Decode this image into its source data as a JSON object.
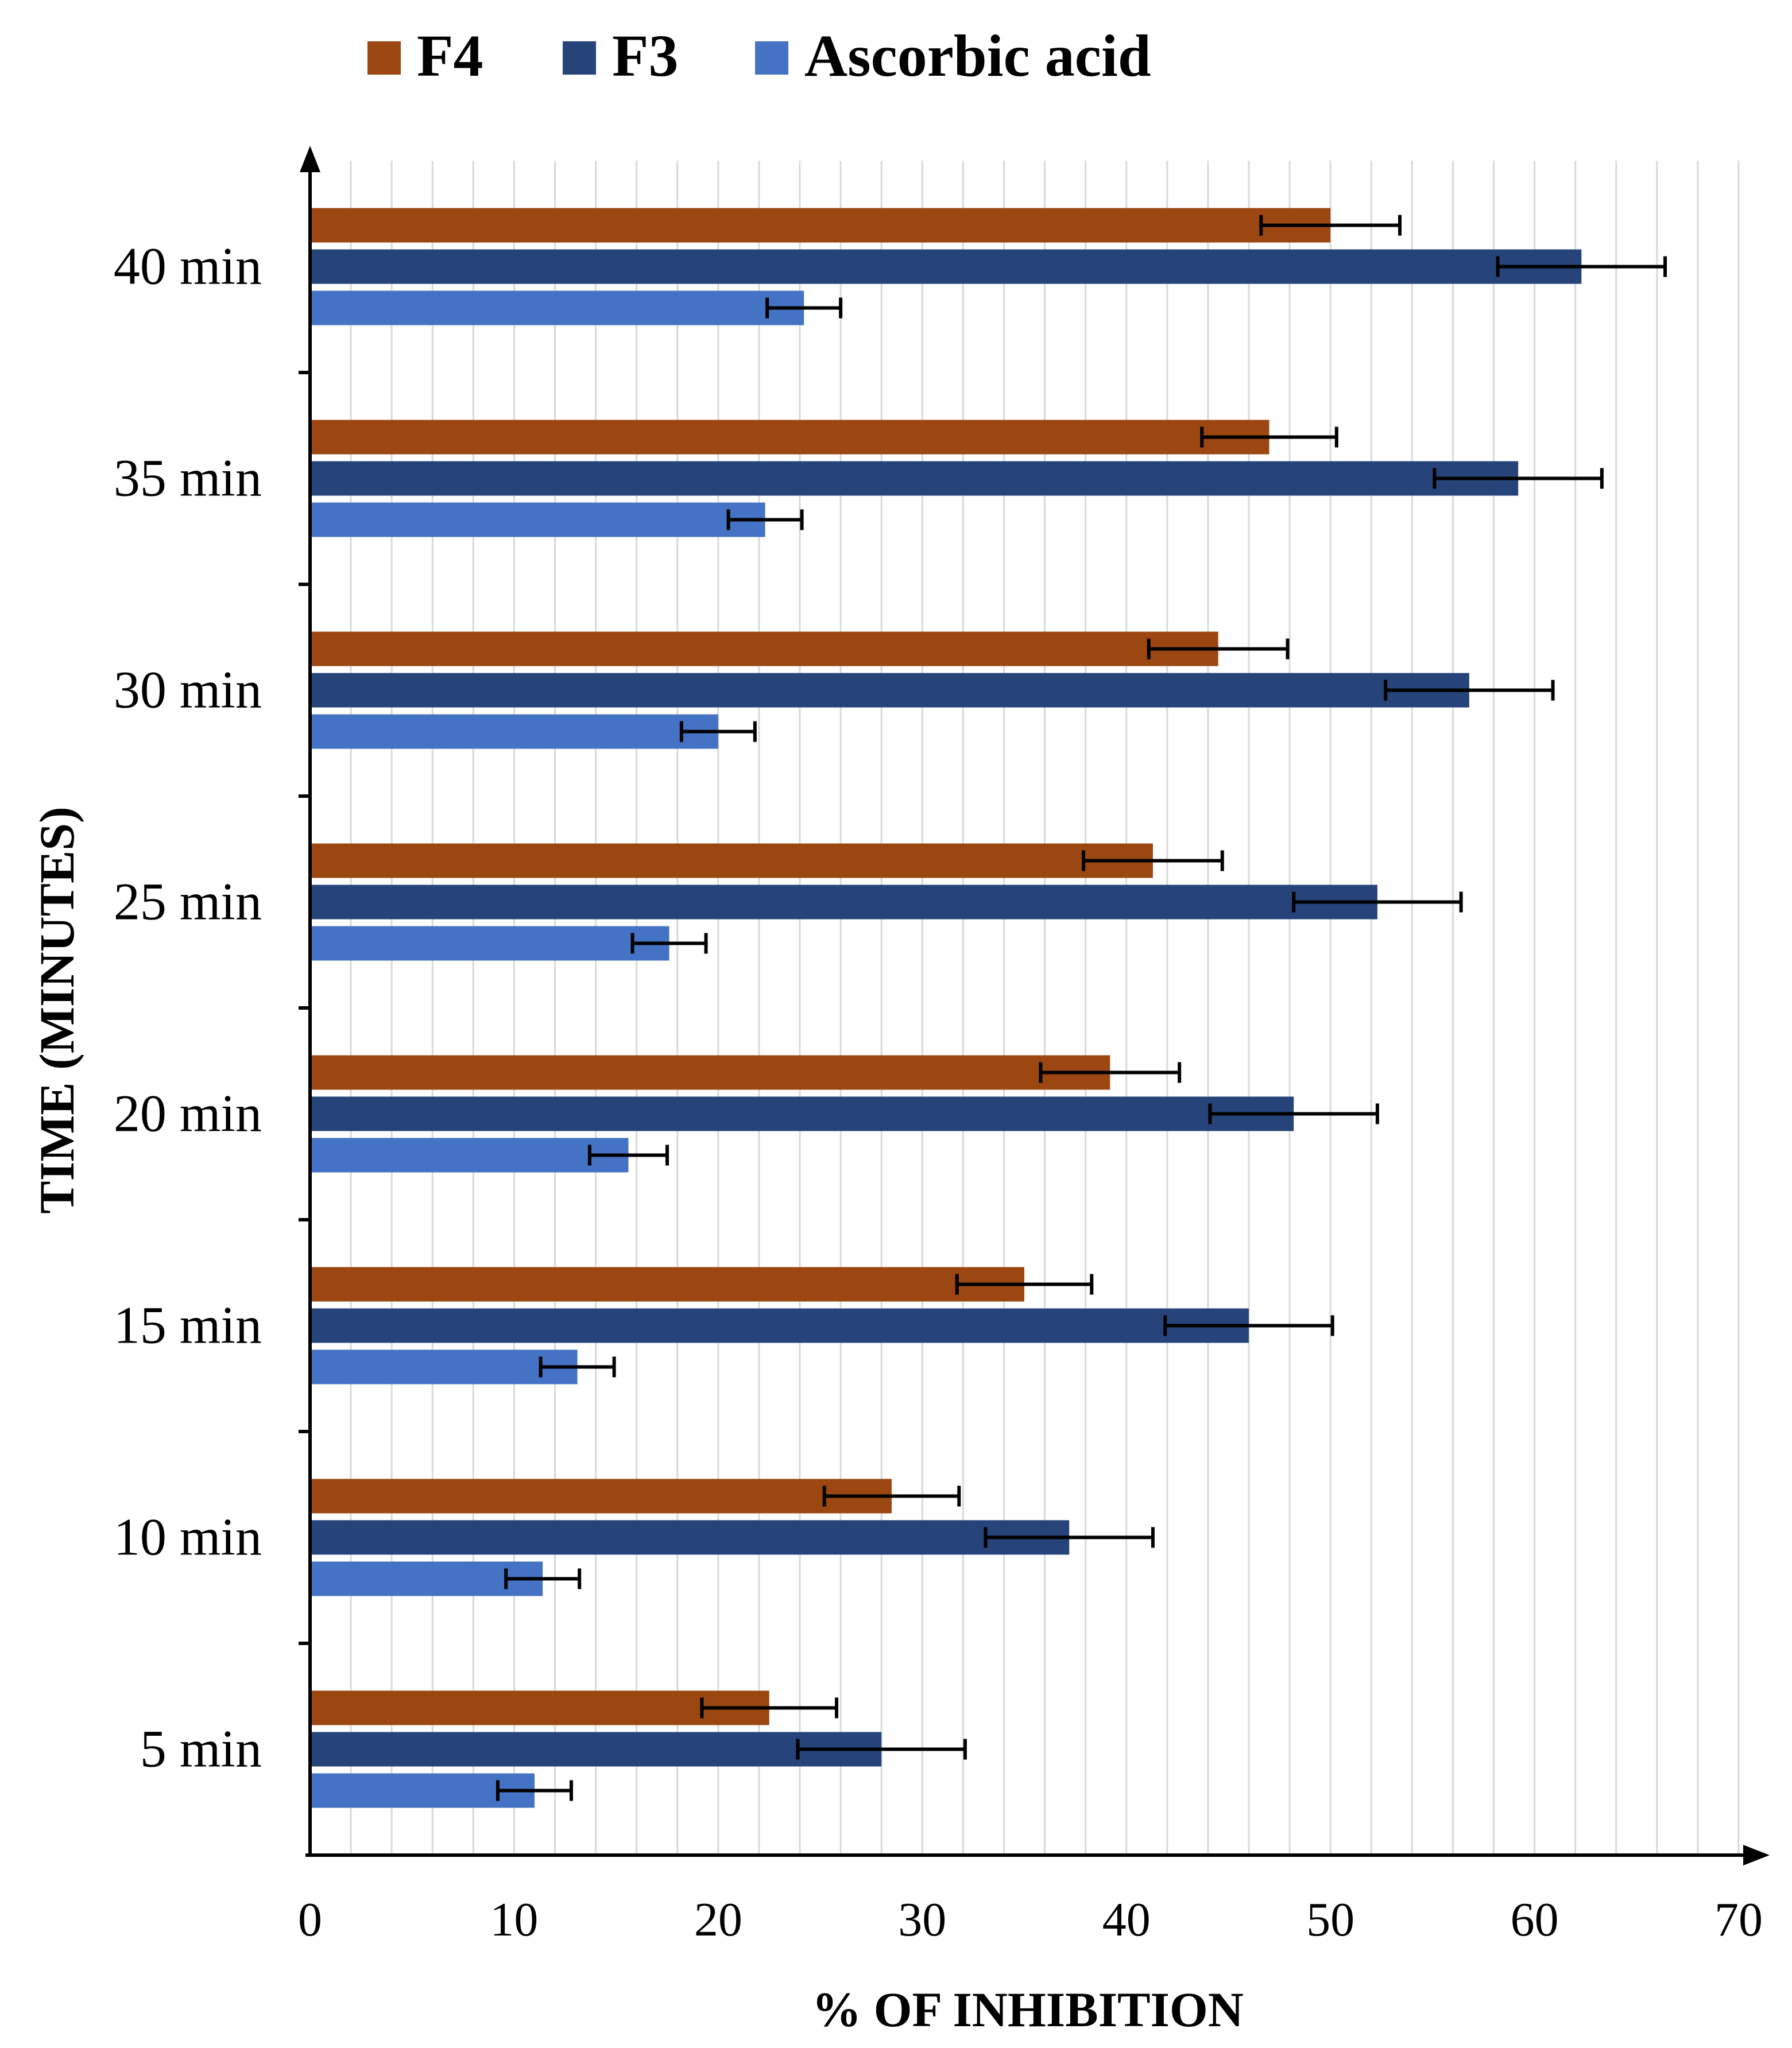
{
  "chart_data": {
    "type": "bar",
    "orientation": "horizontal",
    "title": "",
    "xlabel": "% OF INHIBITION",
    "ylabel": "TIME (MINUTES)",
    "xlim": [
      0,
      70
    ],
    "x_ticks": [
      0,
      10,
      20,
      30,
      40,
      50,
      60,
      70
    ],
    "grid": "vertical minor gridlines every 2",
    "legend_position": "top",
    "categories": [
      "5 min",
      "10 min",
      "15 min",
      "20 min",
      "25 min",
      "30 min",
      "35 min",
      "40 min"
    ],
    "series": [
      {
        "name": "F4",
        "color": "#9C4711",
        "values": [
          22.5,
          28.5,
          35,
          39.2,
          41.3,
          44.5,
          47,
          50
        ],
        "errors": [
          3.3,
          3.3,
          3.3,
          3.4,
          3.4,
          3.4,
          3.3,
          3.4
        ]
      },
      {
        "name": "F3",
        "color": "#26437A",
        "values": [
          28,
          37.2,
          46,
          48.2,
          52.3,
          56.8,
          59.2,
          62.3
        ],
        "errors": [
          4.1,
          4.1,
          4.1,
          4.1,
          4.1,
          4.1,
          4.1,
          4.1
        ]
      },
      {
        "name": "Ascorbic acid",
        "color": "#4472C4",
        "values": [
          11,
          11.4,
          13.1,
          15.6,
          17.6,
          20,
          22.3,
          24.2
        ],
        "errors": [
          1.8,
          1.8,
          1.8,
          1.9,
          1.8,
          1.8,
          1.8,
          1.8
        ]
      }
    ]
  }
}
